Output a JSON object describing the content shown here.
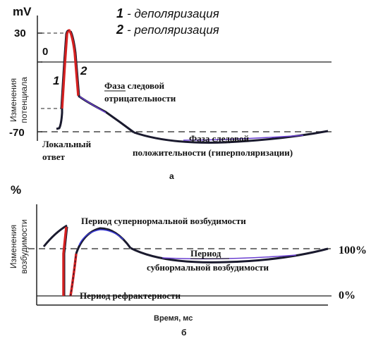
{
  "legend": {
    "item1_num": "1",
    "item1_text": "- деполяризация",
    "item2_num": "2",
    "item2_text": "- реполяризация"
  },
  "top_panel": {
    "unit": "mV",
    "y_label_line1": "Изменения",
    "y_label_line2": "потенциала",
    "tick_30": "30",
    "tick_0": "0",
    "tick_minus70": "-70",
    "marker_1": "1",
    "marker_2": "2",
    "trace_label_line1": "Фаза следовой",
    "trace_label_line2": "отрицательности",
    "local_line1": "Локальный",
    "local_line2": "ответ",
    "hyper_line1": "Фаза следовой",
    "hyper_line2": "положительности (гиперполяризации)",
    "panel_letter": "а"
  },
  "bottom_panel": {
    "unit": "%",
    "y_label_line1": "Изменения",
    "y_label_line2": "возбудимости",
    "supernormal": "Период супернормальной возбудимости",
    "subnormal_line1": "Период",
    "subnormal_line2": "субнормальной возбудимости",
    "refractory": "Период рефрактерности",
    "tick_100": "100%",
    "tick_0": "0%",
    "x_label": "Время, мс",
    "panel_letter": "б"
  },
  "colors": {
    "curve": "#1a1a2e",
    "depolarization": "#d42020",
    "trace_accent": "#6a3fd0",
    "axis": "#222222"
  }
}
